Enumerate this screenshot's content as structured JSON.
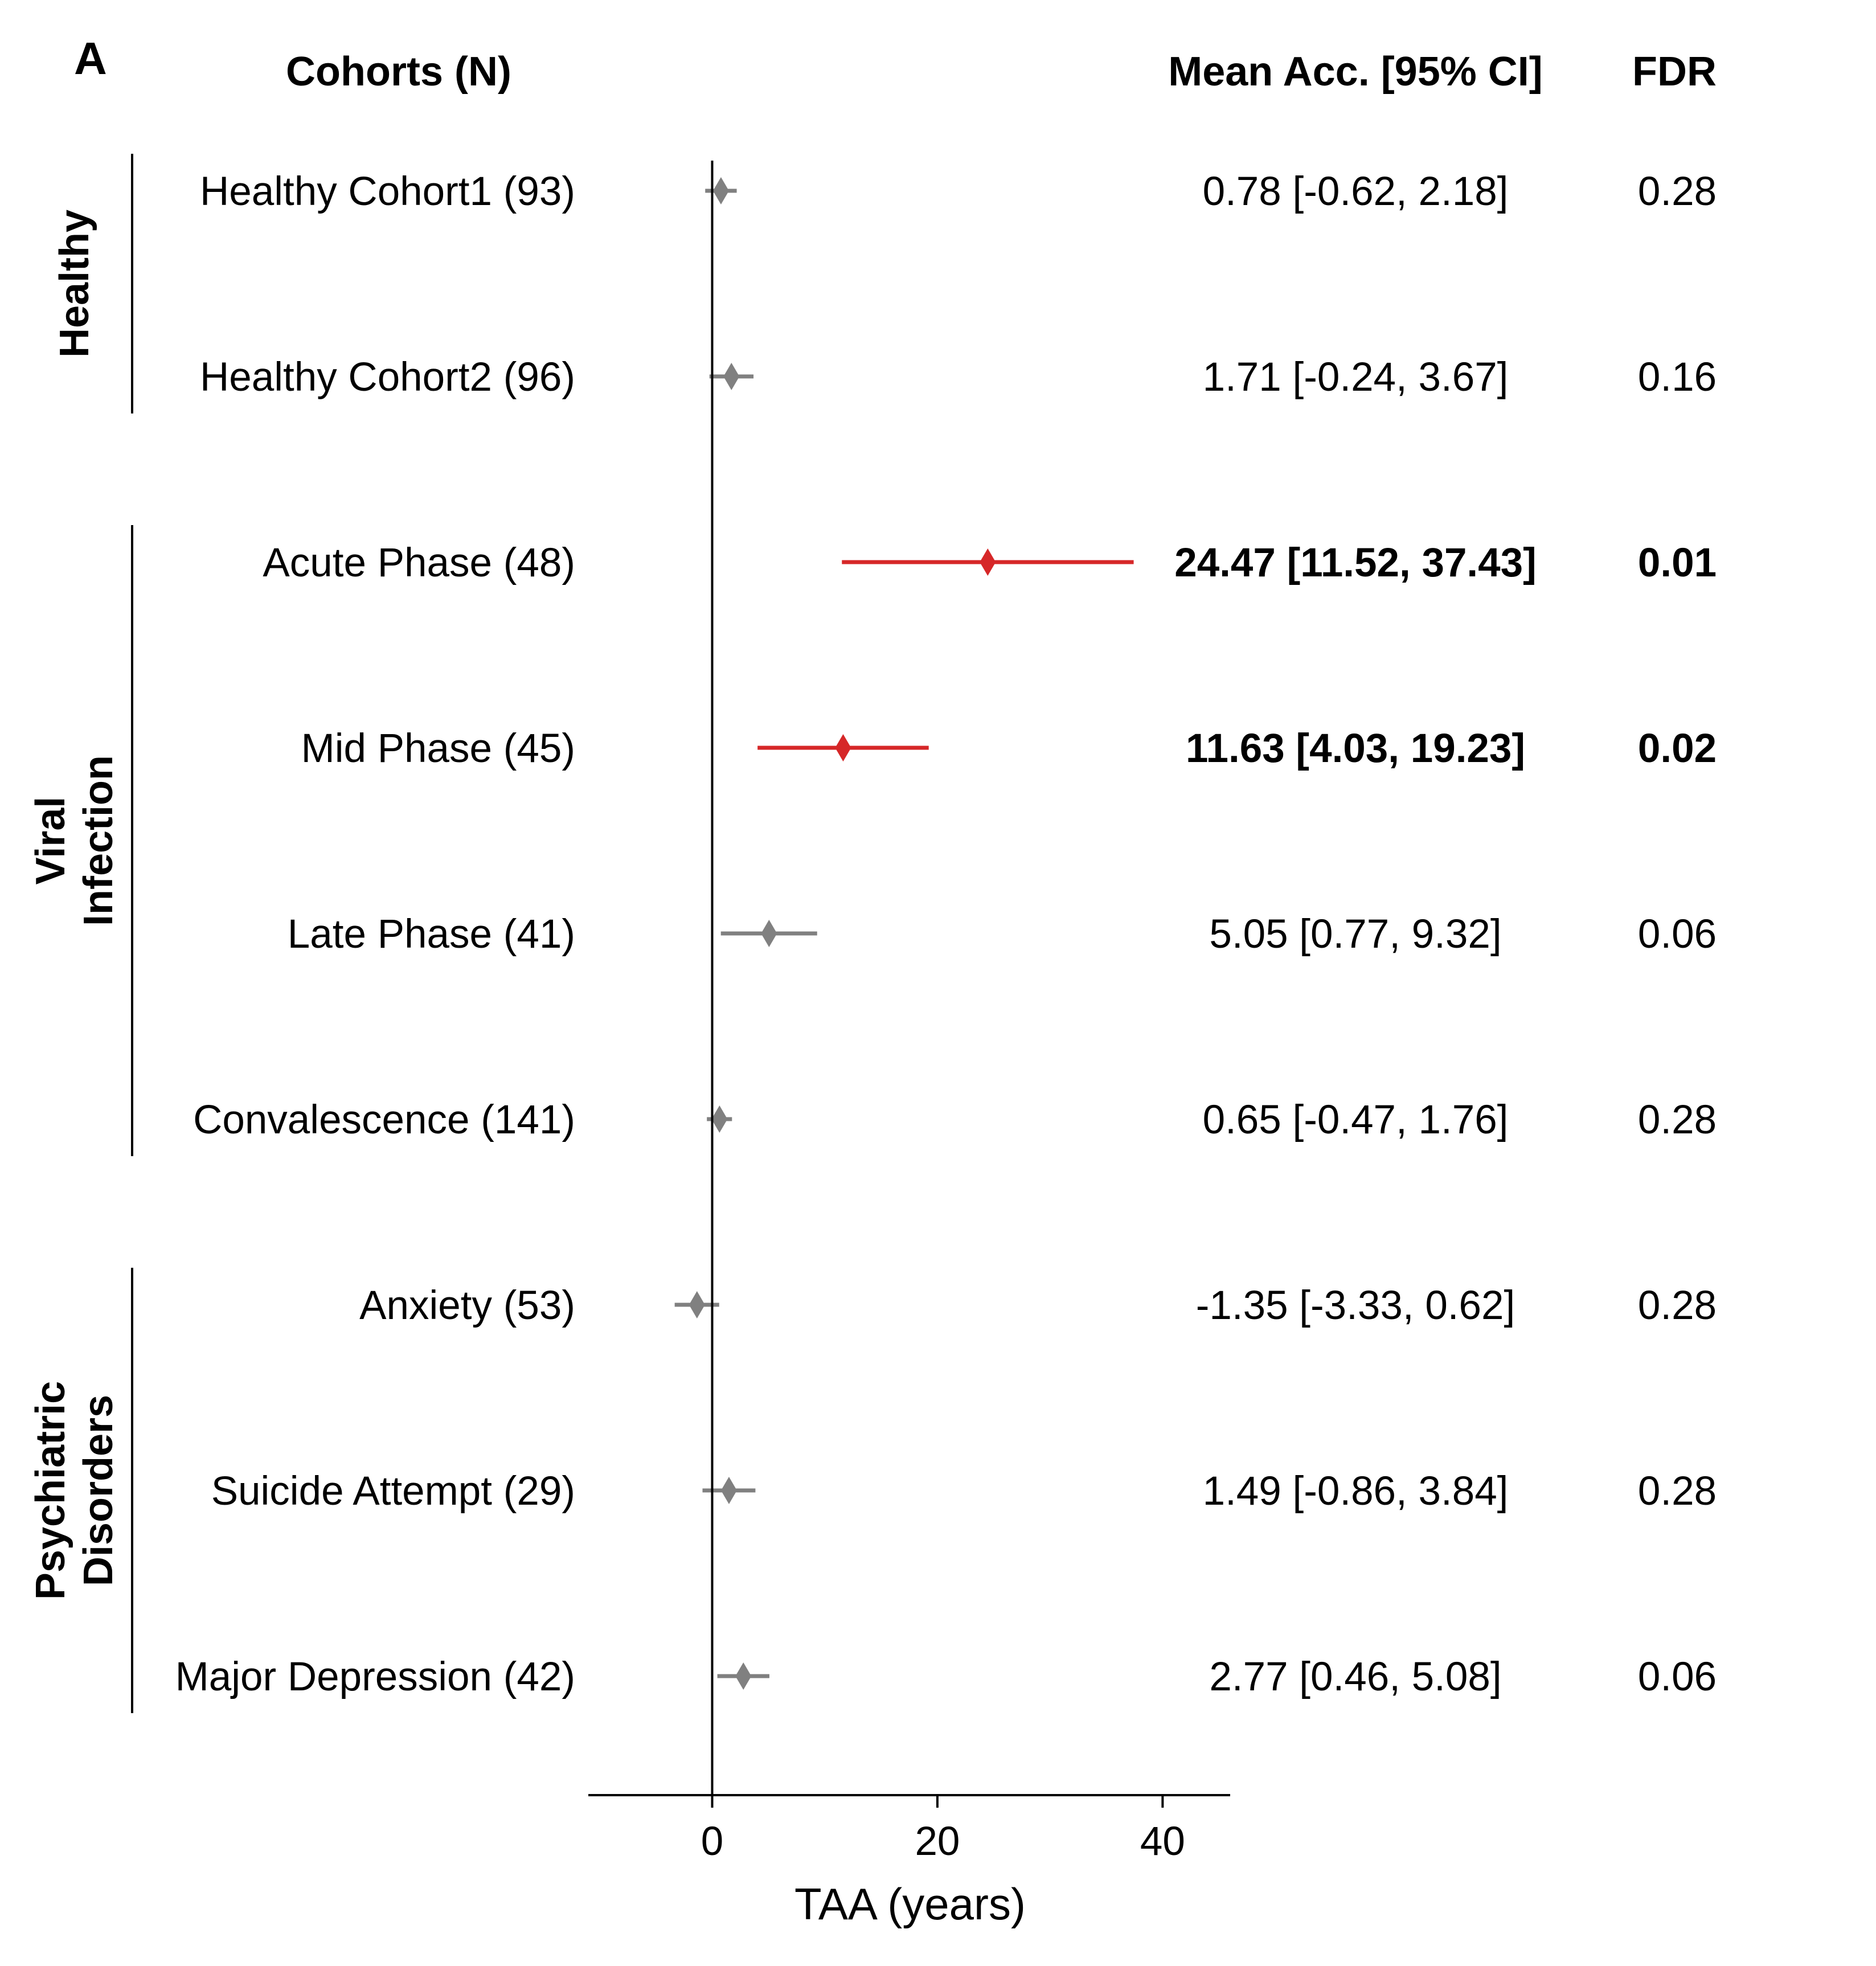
{
  "panel_letter": "A",
  "headers": {
    "cohorts": "Cohorts (N)",
    "mean_acc": "Mean Acc. [95% CI]",
    "fdr": "FDR"
  },
  "colors": {
    "significant": "#d62728",
    "nonsignificant": "#808080",
    "axis": "#000000"
  },
  "chart_data": {
    "type": "forest",
    "xlabel": "TAA (years)",
    "xlim": [
      -11,
      46
    ],
    "xticks": [
      0,
      20,
      40
    ],
    "groups": [
      {
        "name": "Healthy",
        "lines": [
          "Healthy"
        ],
        "rows": [
          0,
          1
        ]
      },
      {
        "name": "Viral Infection",
        "lines": [
          "Viral",
          "Infection"
        ],
        "rows": [
          2,
          3,
          4,
          5
        ]
      },
      {
        "name": "Psychiatric Disorders",
        "lines": [
          "Psychiatric",
          "Disorders"
        ],
        "rows": [
          6,
          7,
          8
        ]
      }
    ],
    "rows": [
      {
        "label": "Healthy Cohort1 (93)",
        "mean": 0.78,
        "lo": -0.62,
        "hi": 2.18,
        "ci_text": "0.78 [-0.62, 2.18]",
        "fdr": "0.28",
        "significant": false
      },
      {
        "label": "Healthy Cohort2 (96)",
        "mean": 1.71,
        "lo": -0.24,
        "hi": 3.67,
        "ci_text": "1.71 [-0.24, 3.67]",
        "fdr": "0.16",
        "significant": false
      },
      {
        "label": "Acute Phase (48)",
        "mean": 24.47,
        "lo": 11.52,
        "hi": 37.43,
        "ci_text": "24.47 [11.52, 37.43]",
        "fdr": "0.01",
        "significant": true
      },
      {
        "label": "Mid Phase (45)",
        "mean": 11.63,
        "lo": 4.03,
        "hi": 19.23,
        "ci_text": "11.63 [4.03, 19.23]",
        "fdr": "0.02",
        "significant": true
      },
      {
        "label": "Late Phase (41)",
        "mean": 5.05,
        "lo": 0.77,
        "hi": 9.32,
        "ci_text": "5.05 [0.77, 9.32]",
        "fdr": "0.06",
        "significant": false
      },
      {
        "label": "Convalescence (141)",
        "mean": 0.65,
        "lo": -0.47,
        "hi": 1.76,
        "ci_text": "0.65 [-0.47, 1.76]",
        "fdr": "0.28",
        "significant": false
      },
      {
        "label": "Anxiety (53)",
        "mean": -1.35,
        "lo": -3.33,
        "hi": 0.62,
        "ci_text": "-1.35 [-3.33, 0.62]",
        "fdr": "0.28",
        "significant": false
      },
      {
        "label": "Suicide Attempt (29)",
        "mean": 1.49,
        "lo": -0.86,
        "hi": 3.84,
        "ci_text": "1.49 [-0.86, 3.84]",
        "fdr": "0.28",
        "significant": false
      },
      {
        "label": "Major Depression (42)",
        "mean": 2.77,
        "lo": 0.46,
        "hi": 5.08,
        "ci_text": "2.77 [0.46, 5.08]",
        "fdr": "0.06",
        "significant": false
      }
    ]
  }
}
